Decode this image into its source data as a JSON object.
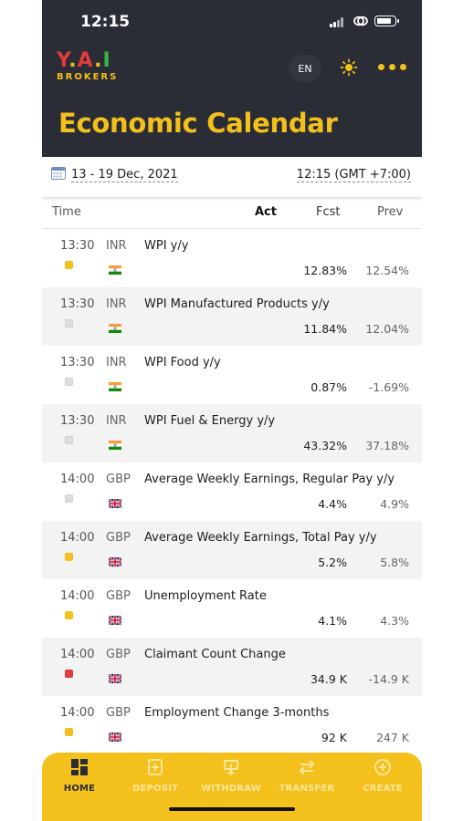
{
  "status_bar": {
    "time": "12:15"
  },
  "header": {
    "logo_mark": "Y.A.I",
    "logo_sub": "BROKERS",
    "language": "EN",
    "title": "Economic Calendar"
  },
  "filter": {
    "date_range": "13 - 19 Dec, 2021",
    "timezone": "12:15 (GMT +7:00)"
  },
  "columns": {
    "time": "Time",
    "act": "Act",
    "fcst": "Fcst",
    "prev": "Prev"
  },
  "colors": {
    "header_bg": "#2a2d36",
    "accent": "#f4c01c",
    "impact_medium": "#f4c01c",
    "impact_low": "#dddddd",
    "impact_high": "#e23b3b"
  },
  "events": [
    {
      "time": "13:30",
      "currency": "INR",
      "name": "WPI y/y",
      "act": "",
      "fcst": "12.83%",
      "prev": "12.54%",
      "impact": "medium",
      "flag": "india-flag-icon"
    },
    {
      "time": "13:30",
      "currency": "INR",
      "name": "WPI Manufactured Products y/y",
      "act": "",
      "fcst": "11.84%",
      "prev": "12.04%",
      "impact": "low",
      "flag": "india-flag-icon"
    },
    {
      "time": "13:30",
      "currency": "INR",
      "name": "WPI Food y/y",
      "act": "",
      "fcst": "0.87%",
      "prev": "-1.69%",
      "impact": "low",
      "flag": "india-flag-icon"
    },
    {
      "time": "13:30",
      "currency": "INR",
      "name": "WPI Fuel & Energy y/y",
      "act": "",
      "fcst": "43.32%",
      "prev": "37.18%",
      "impact": "low",
      "flag": "india-flag-icon"
    },
    {
      "time": "14:00",
      "currency": "GBP",
      "name": "Average Weekly Earnings, Regular Pay y/y",
      "act": "",
      "fcst": "4.4%",
      "prev": "4.9%",
      "impact": "low",
      "flag": "uk-flag-icon"
    },
    {
      "time": "14:00",
      "currency": "GBP",
      "name": "Average Weekly Earnings, Total Pay y/y",
      "act": "",
      "fcst": "5.2%",
      "prev": "5.8%",
      "impact": "medium",
      "flag": "uk-flag-icon"
    },
    {
      "time": "14:00",
      "currency": "GBP",
      "name": "Unemployment Rate",
      "act": "",
      "fcst": "4.1%",
      "prev": "4.3%",
      "impact": "medium",
      "flag": "uk-flag-icon"
    },
    {
      "time": "14:00",
      "currency": "GBP",
      "name": "Claimant Count Change",
      "act": "",
      "fcst": "34.9 K",
      "prev": "-14.9 K",
      "impact": "high",
      "flag": "uk-flag-icon"
    },
    {
      "time": "14:00",
      "currency": "GBP",
      "name": "Employment Change 3-months",
      "act": "",
      "fcst": "92 K",
      "prev": "247 K",
      "impact": "medium",
      "flag": "uk-flag-icon"
    }
  ],
  "tabs": [
    {
      "label": "HOME",
      "icon": "home-grid-icon",
      "active": true
    },
    {
      "label": "DEPOSIT",
      "icon": "deposit-icon",
      "active": false
    },
    {
      "label": "WITHDRAW",
      "icon": "withdraw-icon",
      "active": false
    },
    {
      "label": "TRANSFER",
      "icon": "transfer-icon",
      "active": false
    },
    {
      "label": "CREATE",
      "icon": "create-plus-icon",
      "active": false
    }
  ]
}
